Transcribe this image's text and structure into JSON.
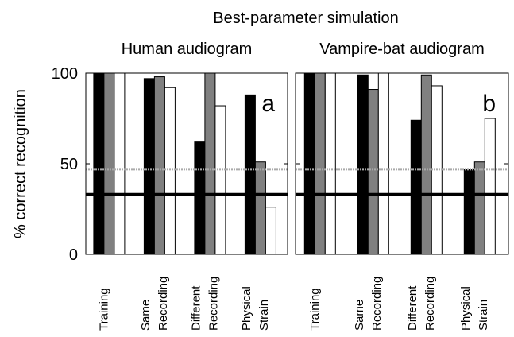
{
  "title": "Best-parameter simulation",
  "chart_data": [
    {
      "type": "bar",
      "title": "Human audiogram",
      "panel_label": "a",
      "ylabel": "% correct recognition",
      "categories": [
        [
          "Training"
        ],
        [
          "Same",
          "Recording"
        ],
        [
          "Different",
          "Recording"
        ],
        [
          "Physical",
          "Strain"
        ]
      ],
      "series": [
        {
          "color": "#000000",
          "values": [
            100,
            97,
            62,
            88
          ]
        },
        {
          "color": "#808080",
          "values": [
            100,
            98,
            100,
            51
          ]
        },
        {
          "color": "#ffffff",
          "values": [
            100,
            92,
            82,
            26
          ]
        }
      ],
      "reference_lines": [
        {
          "value": 33,
          "color": "#000000"
        },
        {
          "value": 47,
          "color": "#aaaaaa"
        }
      ],
      "ylim": [
        0,
        100
      ],
      "yticks": [
        0,
        50,
        100
      ]
    },
    {
      "type": "bar",
      "title": "Vampire-bat audiogram",
      "panel_label": "b",
      "categories": [
        [
          "Training"
        ],
        [
          "Same",
          "Recording"
        ],
        [
          "Different",
          "Recording"
        ],
        [
          "Physical",
          "Strain"
        ]
      ],
      "series": [
        {
          "color": "#000000",
          "values": [
            100,
            99,
            74,
            47
          ]
        },
        {
          "color": "#808080",
          "values": [
            100,
            91,
            99,
            51
          ]
        },
        {
          "color": "#ffffff",
          "values": [
            100,
            100,
            93,
            75
          ]
        }
      ],
      "reference_lines": [
        {
          "value": 33,
          "color": "#000000"
        },
        {
          "value": 47,
          "color": "#aaaaaa"
        }
      ],
      "ylim": [
        0,
        100
      ],
      "yticks": [
        0,
        50,
        100
      ]
    }
  ]
}
